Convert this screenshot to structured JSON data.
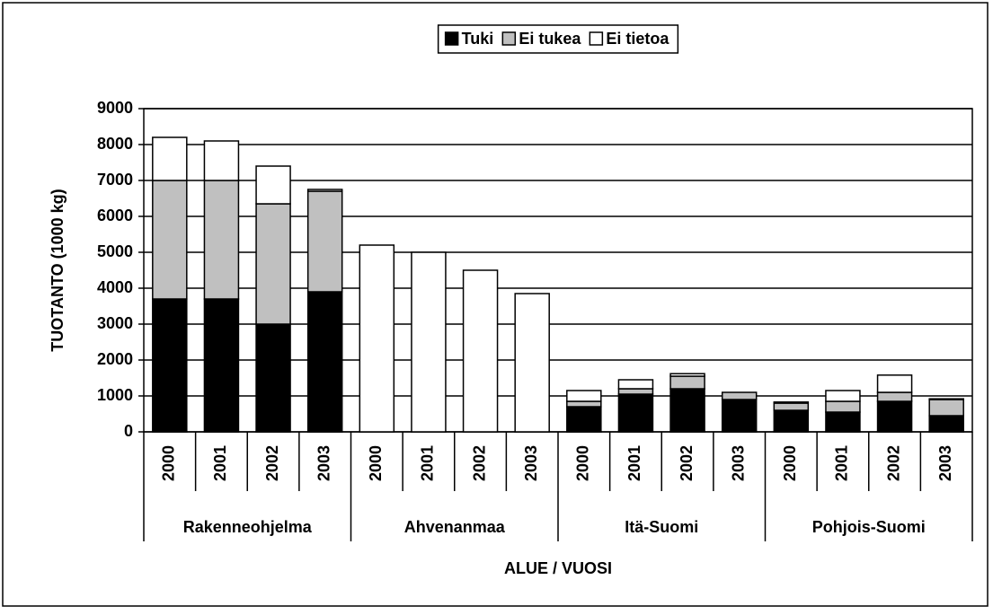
{
  "chart_data": {
    "type": "bar",
    "stacked": true,
    "xlabel": "ALUE / VUOSI",
    "ylabel": "TUOTANTO (1000 kg)",
    "categories": [
      "2000",
      "2001",
      "2002",
      "2003",
      "2000",
      "2001",
      "2002",
      "2003",
      "2000",
      "2001",
      "2002",
      "2003",
      "2000",
      "2001",
      "2002",
      "2003"
    ],
    "groups": [
      "Rakenneohjelma",
      "Ahvenanmaa",
      "Itä-Suomi",
      "Pohjois-Suomi"
    ],
    "series": [
      {
        "name": "Tuki",
        "color": "#000000",
        "values": [
          3700,
          3700,
          3000,
          3900,
          0,
          0,
          0,
          0,
          700,
          1050,
          1200,
          900,
          600,
          550,
          850,
          450
        ]
      },
      {
        "name": "Ei tukea",
        "color": "#c0c0c0",
        "values": [
          3300,
          3300,
          3350,
          2800,
          0,
          0,
          0,
          0,
          150,
          150,
          350,
          200,
          200,
          300,
          250,
          450
        ]
      },
      {
        "name": "Ei tietoa",
        "color": "#ffffff",
        "values": [
          1200,
          1100,
          1050,
          50,
          5200,
          5000,
          4500,
          3850,
          300,
          250,
          70,
          0,
          30,
          300,
          480,
          20
        ]
      }
    ],
    "ylim": [
      0,
      9000
    ],
    "yticks": [
      0,
      1000,
      2000,
      3000,
      4000,
      5000,
      6000,
      7000,
      8000,
      9000
    ],
    "grid": true,
    "legend": "top"
  }
}
